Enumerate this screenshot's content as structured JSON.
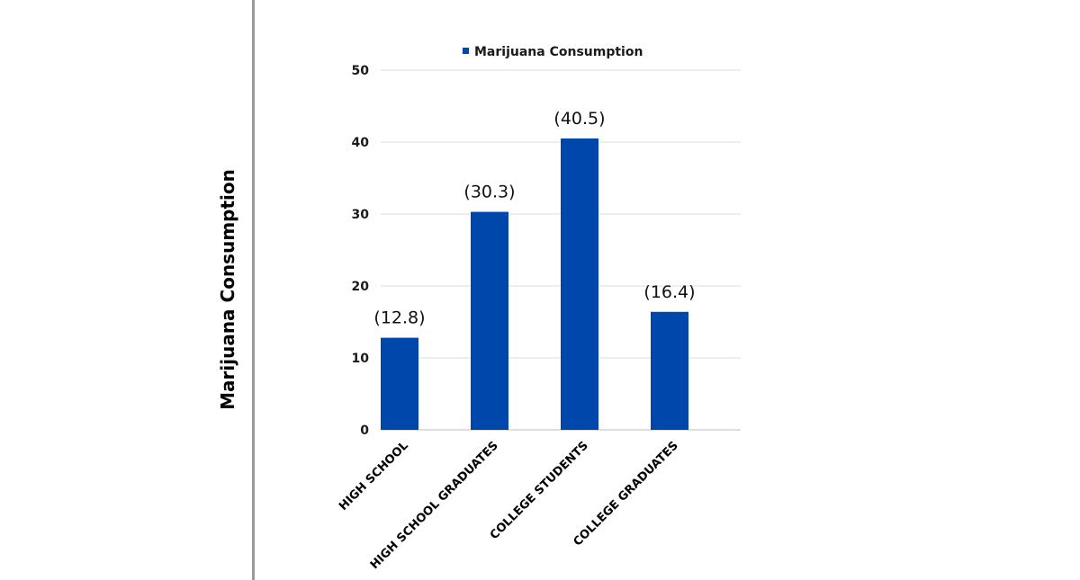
{
  "chart_data": {
    "type": "bar",
    "ylabel": "Marijuana Consumption",
    "categories": [
      "HIGH SCHOOL",
      "HIGH SCHOOL GRADUATES",
      "COLLEGE STUDENTS",
      "COLLEGE GRADUATES"
    ],
    "series": [
      {
        "name": "Marijuana Consumption",
        "values": [
          12.8,
          30.3,
          40.5,
          16.4
        ],
        "data_labels": [
          "(12.8)",
          "(30.3)",
          "(40.5)",
          "(16.4)"
        ],
        "color": "#0047AB"
      }
    ],
    "ylim": [
      0,
      50
    ],
    "yticks": [
      0,
      10,
      20,
      30,
      40,
      50
    ],
    "grid": true,
    "legend_position": "top"
  }
}
